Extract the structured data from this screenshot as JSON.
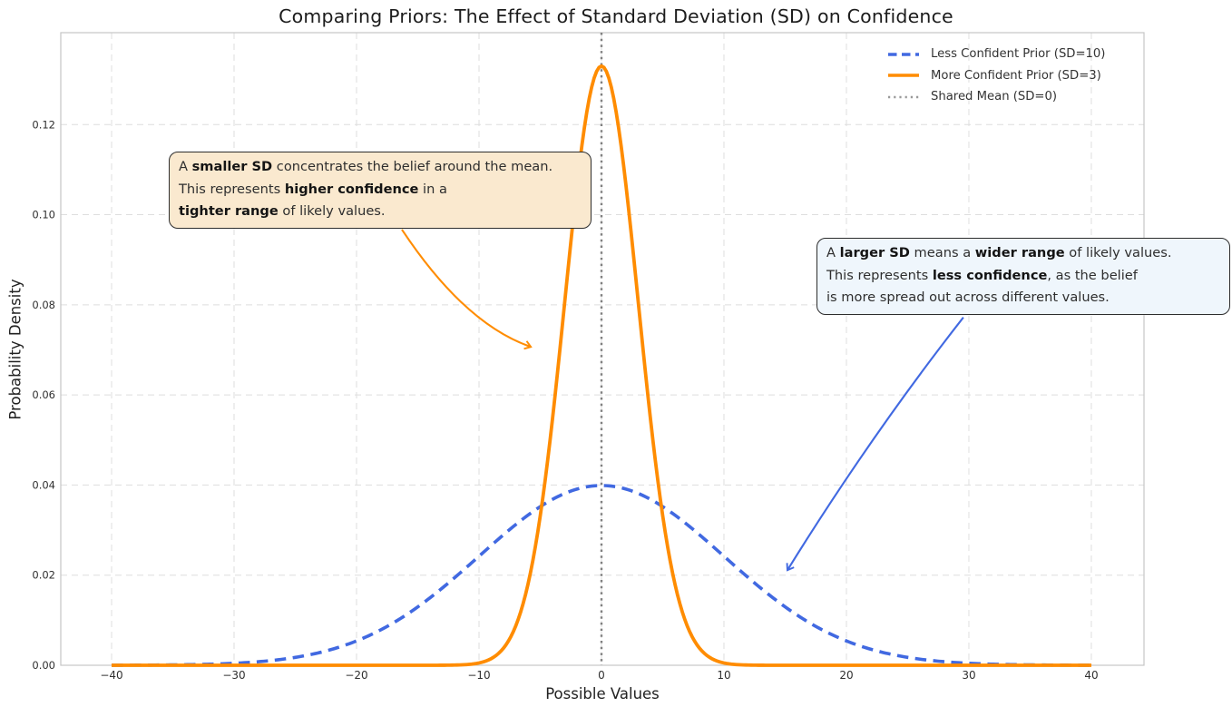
{
  "title": "Comparing Priors: The Effect of Standard Deviation (SD) on Confidence",
  "axes": {
    "xlabel": "Possible Values",
    "ylabel": "Probability Density",
    "x_ticks": [
      {
        "v": -40,
        "label": "−40"
      },
      {
        "v": -30,
        "label": "−30"
      },
      {
        "v": -20,
        "label": "−20"
      },
      {
        "v": -10,
        "label": "−10"
      },
      {
        "v": 0,
        "label": "0"
      },
      {
        "v": 10,
        "label": "10"
      },
      {
        "v": 20,
        "label": "20"
      },
      {
        "v": 30,
        "label": "30"
      },
      {
        "v": 40,
        "label": "40"
      }
    ],
    "y_ticks": [
      {
        "v": 0.0,
        "label": "0.00"
      },
      {
        "v": 0.02,
        "label": "0.02"
      },
      {
        "v": 0.04,
        "label": "0.04"
      },
      {
        "v": 0.06,
        "label": "0.06"
      },
      {
        "v": 0.08,
        "label": "0.08"
      },
      {
        "v": 0.1,
        "label": "0.10"
      },
      {
        "v": 0.12,
        "label": "0.12"
      }
    ]
  },
  "colors": {
    "less_confident": "#4169E1",
    "more_confident": "#FF8C00",
    "mean_line": "#808080",
    "grid": "#DEDEDE",
    "spine": "#C6C6C6",
    "tick_text": "#303030",
    "annotation_smaller_bg": "#FAE9CF",
    "annotation_larger_bg": "#EFF6FC"
  },
  "legend": {
    "entries": [
      {
        "label": "Less Confident Prior (SD=10)",
        "color": "#4169E1",
        "style": "dashed"
      },
      {
        "label": "More Confident Prior (SD=3)",
        "color": "#FF8C00",
        "style": "solid"
      },
      {
        "label": "Shared Mean (SD=0)",
        "color": "#999999",
        "style": "dotted"
      }
    ]
  },
  "chart_data": {
    "type": "line",
    "title": "Comparing Priors: The Effect of Standard Deviation (SD) on Confidence",
    "xlabel": "Possible Values",
    "ylabel": "Probability Density",
    "xlim": [
      -44.15,
      44.3
    ],
    "ylim": [
      0,
      0.1404
    ],
    "x_range": [
      -40,
      40
    ],
    "grid": true,
    "grid_style": "dashed",
    "legend_position": "upper right",
    "series": [
      {
        "name": "Less Confident Prior (SD=10)",
        "distribution": "normal",
        "mean": 0,
        "sd": 10,
        "peak_x": 0,
        "peak_density": 0.0399,
        "color": "#4169E1",
        "line_style": "dashed",
        "line_width": 3.6
      },
      {
        "name": "More Confident Prior (SD=3)",
        "distribution": "normal",
        "mean": 0,
        "sd": 3,
        "peak_x": 0,
        "peak_density": 0.133,
        "color": "#FF8C00",
        "line_style": "solid",
        "line_width": 3.8
      }
    ],
    "mean_line": {
      "x": 0,
      "label": "Shared Mean (SD=0)",
      "color": "#808080",
      "style": "dotted"
    }
  },
  "annotations": [
    {
      "id": "smaller",
      "bg": "#FAE9CF",
      "lines": [
        [
          {
            "text": "A ",
            "bold": false
          },
          {
            "text": "smaller SD",
            "bold": true
          },
          {
            "text": " concentrates the belief around the mean.",
            "bold": false
          }
        ],
        [
          {
            "text": "This represents ",
            "bold": false
          },
          {
            "text": "higher confidence",
            "bold": true
          },
          {
            "text": " in a",
            "bold": false
          }
        ],
        [
          {
            "text": "tighter range",
            "bold": true
          },
          {
            "text": " of likely values.",
            "bold": false
          }
        ]
      ],
      "arrow": {
        "color": "#FF8C00",
        "from": [
          -16.3,
          0.0967
        ],
        "cp": [
          -11.2,
          0.0758
        ],
        "to": [
          -5.8,
          0.0707
        ]
      }
    },
    {
      "id": "larger",
      "bg": "#EFF6FC",
      "lines": [
        [
          {
            "text": "A ",
            "bold": false
          },
          {
            "text": "larger SD",
            "bold": true
          },
          {
            "text": " means a ",
            "bold": false
          },
          {
            "text": "wider range",
            "bold": true
          },
          {
            "text": " of likely values.",
            "bold": false
          }
        ],
        [
          {
            "text": "This represents ",
            "bold": false
          },
          {
            "text": "less confidence",
            "bold": true
          },
          {
            "text": ", as the belief",
            "bold": false
          }
        ],
        [
          {
            "text": "is more spread out across different values.",
            "bold": false
          }
        ]
      ],
      "arrow": {
        "color": "#4169E1",
        "from": [
          29.55,
          0.0772
        ],
        "cp": [
          22.0,
          0.051
        ],
        "to": [
          15.2,
          0.0212
        ]
      }
    }
  ]
}
